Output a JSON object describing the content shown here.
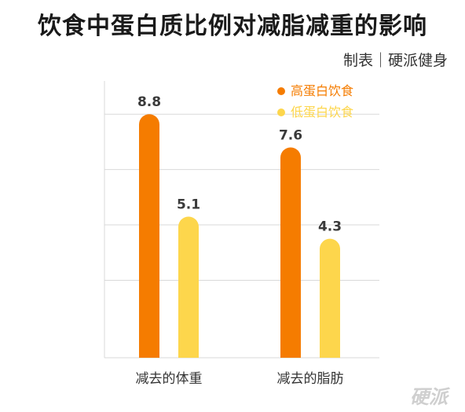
{
  "header": {
    "title": "饮食中蛋白质比例对减脂减重的影响",
    "subtitle": "制表｜硬派健身"
  },
  "watermark": "硬派",
  "colors": {
    "high_protein": "#f57c00",
    "low_protein": "#fdd64c",
    "grid": "#d9d9d9",
    "label": "#3a3a3a"
  },
  "chart_data": {
    "type": "bar",
    "categories": [
      "减去的体重",
      "减去的脂肪"
    ],
    "series": [
      {
        "name": "高蛋白饮食",
        "values": [
          8.8,
          7.6
        ]
      },
      {
        "name": "低蛋白饮食",
        "values": [
          5.1,
          4.3
        ]
      }
    ],
    "ylim": [
      0,
      10
    ],
    "grid": true,
    "legend": "top-right",
    "data_labels": true
  }
}
